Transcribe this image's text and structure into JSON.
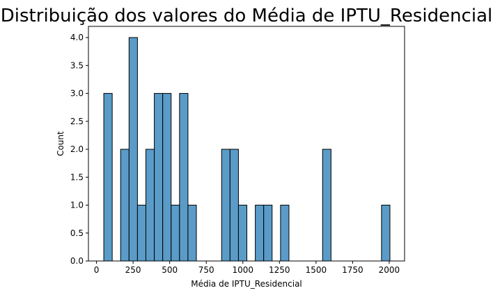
{
  "chart_data": {
    "type": "bar",
    "title": "Distribuição dos valores do Média de IPTU_Residencial",
    "xlabel": "Média de IPTU_Residencial",
    "ylabel": "Count",
    "xlim": [
      -55,
      2105
    ],
    "ylim": [
      0,
      4.2
    ],
    "xticks": [
      0,
      250,
      500,
      750,
      1000,
      1250,
      1500,
      1750,
      2000
    ],
    "yticks": [
      0.0,
      0.5,
      1.0,
      1.5,
      2.0,
      2.5,
      3.0,
      3.5,
      4.0
    ],
    "ytick_labels": [
      "0.0",
      "0.5",
      "1.0",
      "1.5",
      "2.0",
      "2.5",
      "3.0",
      "3.5",
      "4.0"
    ],
    "bin_width": 57.5,
    "bars": [
      {
        "x0": 50,
        "count": 3
      },
      {
        "x0": 165,
        "count": 2
      },
      {
        "x0": 222.5,
        "count": 4
      },
      {
        "x0": 280,
        "count": 1
      },
      {
        "x0": 337.5,
        "count": 2
      },
      {
        "x0": 395,
        "count": 3
      },
      {
        "x0": 452.5,
        "count": 3
      },
      {
        "x0": 510,
        "count": 1
      },
      {
        "x0": 567.5,
        "count": 3
      },
      {
        "x0": 625,
        "count": 1
      },
      {
        "x0": 855,
        "count": 2
      },
      {
        "x0": 912.5,
        "count": 2
      },
      {
        "x0": 970,
        "count": 1
      },
      {
        "x0": 1085,
        "count": 1
      },
      {
        "x0": 1142.5,
        "count": 1
      },
      {
        "x0": 1257.5,
        "count": 1
      },
      {
        "x0": 1545,
        "count": 2
      },
      {
        "x0": 1947.5,
        "count": 1
      }
    ],
    "grid": false,
    "legend": "none",
    "colors": {
      "bar_fill": "#5a9bc8",
      "bar_edge": "#000000"
    }
  }
}
